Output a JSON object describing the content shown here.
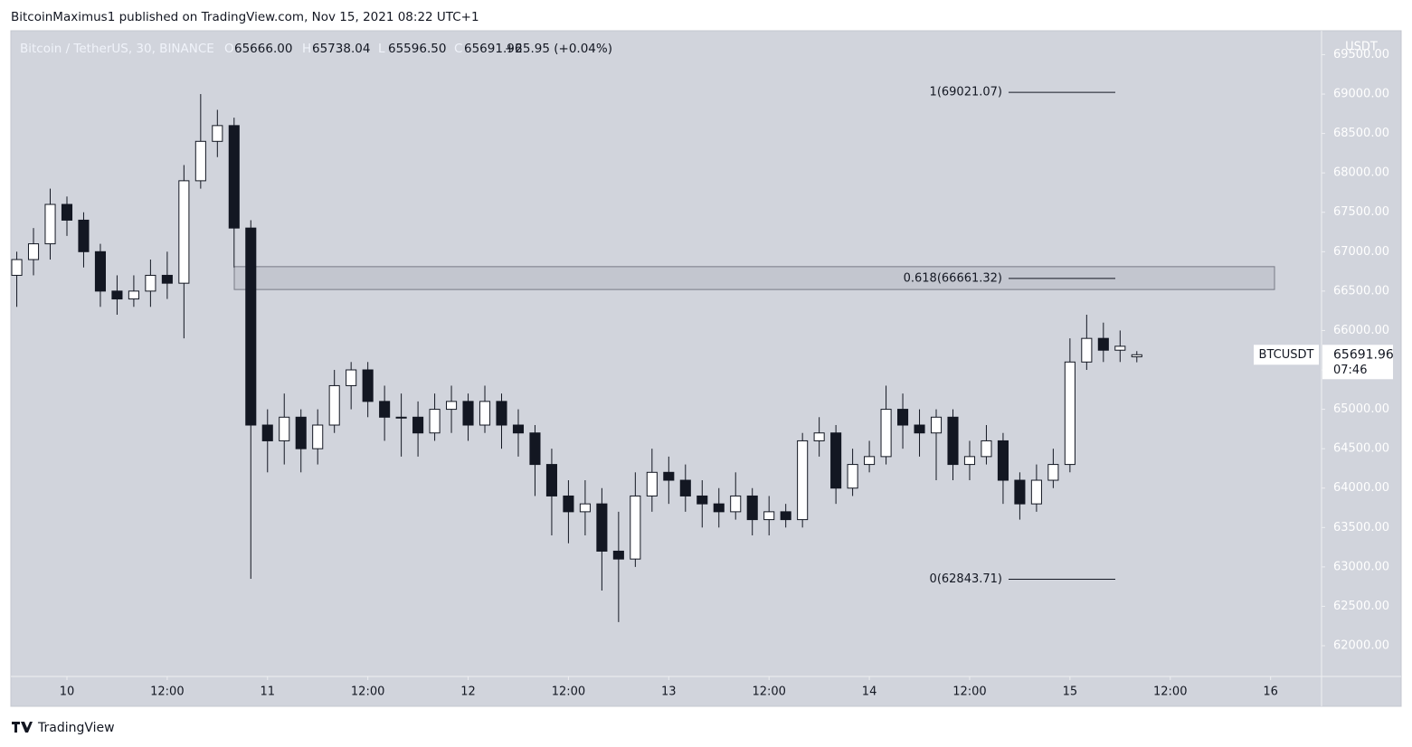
{
  "header": {
    "byline": "BitcoinMaximus1 published on TradingView.com, Nov 15, 2021 08:22 UTC+1",
    "symbol": "Bitcoin / TetherUS, 30, BINANCE",
    "ohlc": [
      {
        "key": "O",
        "text": "65666.00"
      },
      {
        "key": "H",
        "text": "65738.04"
      },
      {
        "key": "L",
        "text": "65596.50"
      },
      {
        "key": "C",
        "text": "65691.96"
      }
    ],
    "change": "+25.95 (+0.04%)"
  },
  "footer": {
    "brand": "TradingView"
  },
  "chart_data": {
    "type": "candlestick",
    "y_axis_unit": "USDT",
    "x": [
      -6,
      -4,
      -2,
      0,
      2,
      4,
      6,
      8,
      10,
      12,
      14,
      16,
      18,
      20,
      22,
      24,
      26,
      28,
      30,
      32,
      34,
      36,
      38,
      40,
      42,
      44,
      46,
      48,
      50,
      52,
      54,
      56,
      58,
      60,
      62,
      64,
      66,
      68,
      70,
      72,
      74,
      76,
      78,
      80,
      82,
      84,
      86,
      88,
      90,
      92,
      94,
      96,
      98,
      100,
      102,
      104,
      106,
      108,
      110,
      112,
      114,
      116,
      118,
      120,
      122,
      124,
      126,
      128
    ],
    "open": [
      66700,
      66900,
      67100,
      67600,
      67400,
      67000,
      66500,
      66400,
      66500,
      66700,
      66600,
      67900,
      68400,
      68600,
      67300,
      64800,
      64600,
      64900,
      64500,
      64800,
      65300,
      65500,
      65100,
      64900,
      64900,
      64700,
      65000,
      65100,
      64800,
      65100,
      64800,
      64700,
      64300,
      63900,
      63700,
      63800,
      63200,
      63100,
      63900,
      64200,
      64100,
      63900,
      63800,
      63700,
      63900,
      63600,
      63700,
      63600,
      64600,
      64700,
      64000,
      64300,
      64400,
      65000,
      64800,
      64700,
      64900,
      64300,
      64400,
      64600,
      64100,
      63800,
      64100,
      64300,
      65600,
      65900,
      65750,
      65666.0
    ],
    "high": [
      67000,
      67300,
      67800,
      67700,
      67500,
      67100,
      66700,
      66700,
      66900,
      67000,
      68100,
      69000,
      68800,
      68700,
      67400,
      65000,
      65200,
      65000,
      65000,
      65500,
      65600,
      65600,
      65300,
      65200,
      65100,
      65200,
      65300,
      65200,
      65300,
      65200,
      65000,
      64800,
      64500,
      64100,
      64100,
      64000,
      63700,
      64200,
      64500,
      64400,
      64300,
      64100,
      64000,
      64200,
      64000,
      63900,
      63800,
      64700,
      64900,
      64800,
      64500,
      64600,
      65300,
      65200,
      65000,
      65000,
      65000,
      64600,
      64800,
      64700,
      64200,
      64300,
      64500,
      65900,
      66200,
      66100,
      66000,
      65738.04
    ],
    "low": [
      66300,
      66700,
      66900,
      67200,
      66800,
      66300,
      66200,
      66300,
      66300,
      66400,
      65900,
      67800,
      68200,
      66800,
      62850,
      64200,
      64300,
      64200,
      64300,
      64700,
      65000,
      64900,
      64600,
      64400,
      64400,
      64600,
      64700,
      64600,
      64700,
      64500,
      64400,
      63900,
      63400,
      63300,
      63400,
      62700,
      62300,
      63000,
      63700,
      63800,
      63700,
      63500,
      63500,
      63600,
      63400,
      63400,
      63500,
      63500,
      64400,
      63800,
      63900,
      64200,
      64300,
      64500,
      64400,
      64100,
      64100,
      64100,
      64300,
      63800,
      63600,
      63700,
      64000,
      64200,
      65500,
      65600,
      65600,
      65596.5
    ],
    "close": [
      66900,
      67100,
      67600,
      67400,
      67000,
      66500,
      66400,
      66500,
      66700,
      66600,
      67900,
      68400,
      68600,
      67300,
      64800,
      64600,
      64900,
      64500,
      64800,
      65300,
      65500,
      65100,
      64900,
      64900,
      64700,
      65000,
      65100,
      64800,
      65100,
      64800,
      64700,
      64300,
      63900,
      63700,
      63800,
      63200,
      63100,
      63900,
      64200,
      64100,
      63900,
      63800,
      63700,
      63900,
      63600,
      63700,
      63600,
      64600,
      64700,
      64000,
      64300,
      64400,
      65000,
      64800,
      64700,
      64900,
      64300,
      64400,
      64600,
      64100,
      63800,
      64100,
      64300,
      65600,
      65900,
      65750,
      65800,
      65691.96
    ],
    "up_color": "#ffffff",
    "down_color": "#131722",
    "outline_color": "#131722",
    "xlim": [
      -6.6,
      150.1
    ],
    "ylim": [
      61610,
      69792
    ],
    "xticks": [
      {
        "value": 0,
        "label": "10"
      },
      {
        "value": 12,
        "label": "12:00"
      },
      {
        "value": 24,
        "label": "11"
      },
      {
        "value": 36,
        "label": "12:00"
      },
      {
        "value": 48,
        "label": "12"
      },
      {
        "value": 60,
        "label": "12:00"
      },
      {
        "value": 72,
        "label": "13"
      },
      {
        "value": 84,
        "label": "12:00"
      },
      {
        "value": 96,
        "label": "14"
      },
      {
        "value": 108,
        "label": "12:00"
      },
      {
        "value": 120,
        "label": "15"
      },
      {
        "value": 132,
        "label": "12:00"
      },
      {
        "value": 144,
        "label": "16"
      }
    ],
    "yticks": [
      {
        "value": 62000,
        "label": "62000.00"
      },
      {
        "value": 62500,
        "label": "62500.00"
      },
      {
        "value": 63000,
        "label": "63000.00"
      },
      {
        "value": 63500,
        "label": "63500.00"
      },
      {
        "value": 64000,
        "label": "64000.00"
      },
      {
        "value": 64500,
        "label": "64500.00"
      },
      {
        "value": 65000,
        "label": "65000.00"
      },
      {
        "value": 65500,
        "label": "65500.00"
      },
      {
        "value": 66000,
        "label": "66000.00"
      },
      {
        "value": 66500,
        "label": "66500.00"
      },
      {
        "value": 67000,
        "label": "67000.00"
      },
      {
        "value": 67500,
        "label": "67500.00"
      },
      {
        "value": 68000,
        "label": "68000.00"
      },
      {
        "value": 68500,
        "label": "68500.00"
      },
      {
        "value": 69000,
        "label": "69000.00"
      },
      {
        "value": 69500,
        "label": "69500.00"
      }
    ],
    "fib_levels": [
      {
        "value": 69021.07,
        "label": "1(69021.07)"
      },
      {
        "value": 66661.32,
        "label": "0.618(66661.32)"
      },
      {
        "value": 62843.71,
        "label": "0(62843.71)"
      }
    ],
    "zone": [
      66520,
      66810
    ],
    "last_price": {
      "symbol": "BTCUSDT",
      "value": 65691.96,
      "label": "65691.96",
      "countdown": "07:46"
    }
  }
}
